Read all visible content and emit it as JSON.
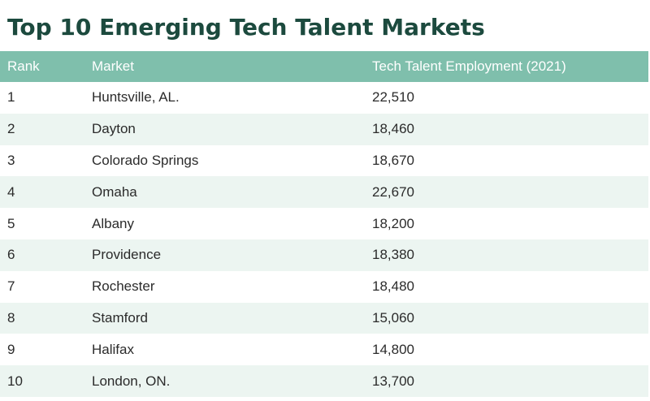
{
  "title": "Top 10 Emerging Tech Talent Markets",
  "columns": {
    "rank": "Rank",
    "market": "Market",
    "employment": "Tech Talent Employment (2021)"
  },
  "rows": [
    {
      "rank": "1",
      "market": "Huntsville, AL.",
      "employment": "22,510"
    },
    {
      "rank": "2",
      "market": "Dayton",
      "employment": "18,460"
    },
    {
      "rank": "3",
      "market": "Colorado Springs",
      "employment": "18,670"
    },
    {
      "rank": "4",
      "market": "Omaha",
      "employment": "22,670"
    },
    {
      "rank": "5",
      "market": "Albany",
      "employment": "18,200"
    },
    {
      "rank": "6",
      "market": "Providence",
      "employment": "18,380"
    },
    {
      "rank": "7",
      "market": "Rochester",
      "employment": "18,480"
    },
    {
      "rank": "8",
      "market": "Stamford",
      "employment": "15,060"
    },
    {
      "rank": "9",
      "market": "Halifax",
      "employment": "14,800"
    },
    {
      "rank": "10",
      "market": "London, ON.",
      "employment": "13,700"
    }
  ],
  "colors": {
    "title": "#1c4a3e",
    "header_bg": "#7fbfac",
    "stripe_bg": "#ecf5f1"
  }
}
